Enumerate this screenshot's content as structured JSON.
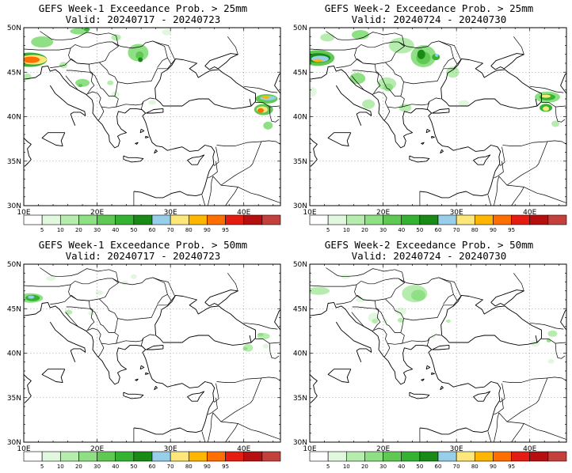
{
  "panels": [
    {
      "title": "GEFS Week-1 Exceedance Prob. > 25mm",
      "valid": "Valid: 20240717 - 20240723",
      "blobs": [
        {
          "cx": -5,
          "cy": 15,
          "rx": 18,
          "ry": 7,
          "level": 7
        },
        {
          "cx": -4,
          "cy": 15,
          "rx": 10,
          "ry": 4,
          "level": 9
        },
        {
          "cx": 2,
          "cy": 18,
          "rx": 6,
          "ry": 2,
          "level": 3
        },
        {
          "cx": 14,
          "cy": 20,
          "rx": 4,
          "ry": 2,
          "level": 3
        },
        {
          "cx": -2,
          "cy": 11,
          "rx": 9,
          "ry": 4,
          "level": 3
        },
        {
          "cx": 34,
          "cy": 18,
          "rx": 3,
          "ry": 3,
          "level": 3
        },
        {
          "cx": 35,
          "cy": 19,
          "rx": 1.5,
          "ry": 1.5,
          "level": 5
        },
        {
          "cx": 5,
          "cy": 21,
          "rx": 3,
          "ry": 3,
          "level": 1
        },
        {
          "cx": 32,
          "cy": 17,
          "rx": 6,
          "ry": 4,
          "level": 1
        },
        {
          "cx": 39,
          "cy": 13,
          "rx": 4,
          "ry": 4,
          "level": 1
        },
        {
          "cx": 20,
          "cy": 12,
          "rx": 4,
          "ry": 4,
          "level": 1
        },
        {
          "cx": 52,
          "cy": 17,
          "rx": 2,
          "ry": 2,
          "level": 1
        },
        {
          "cx": 43,
          "cy": 22,
          "rx": 2,
          "ry": 2,
          "level": 2
        },
        {
          "cx": 52,
          "cy": 27,
          "rx": 3,
          "ry": 3,
          "level": 1
        },
        {
          "cx": 51,
          "cy": -1,
          "rx": 3,
          "ry": 3,
          "level": 1
        },
        {
          "cx": 8,
          "cy": -5,
          "rx": 4,
          "ry": 2,
          "level": 2
        },
        {
          "cx": 14,
          "cy": -7,
          "rx": 2,
          "ry": 2,
          "level": 2
        },
        {
          "cx": 29,
          "cy": 3,
          "rx": 2,
          "ry": 2,
          "level": 1
        },
        {
          "cx": 79,
          "cy": -1,
          "rx": 3,
          "ry": 4,
          "level": 1
        },
        {
          "cx": 81,
          "cy": 2,
          "rx": 2,
          "ry": 2,
          "level": 2
        },
        {
          "cx": 84,
          "cy": 4,
          "rx": 4,
          "ry": 4,
          "level": 1
        },
        {
          "cx": 101,
          "cy": 3,
          "rx": 6,
          "ry": 4,
          "level": 1
        },
        {
          "cx": 86,
          "cy": -2,
          "rx": 3,
          "ry": 3,
          "level": 1
        },
        {
          "cx": 15,
          "cy": 17,
          "rx": 3,
          "ry": 3,
          "level": 1
        },
        {
          "cx": 19,
          "cy": 15,
          "rx": 3,
          "ry": 3,
          "level": 1
        },
        {
          "cx": 33,
          "cy": 7,
          "rx": 2,
          "ry": 2,
          "level": 1
        },
        {
          "cx": 65,
          "cy": 11,
          "rx": 3,
          "ry": 3,
          "level": 2
        },
        {
          "cx": 105,
          "cy": -1,
          "rx": 4,
          "ry": 4,
          "level": 2
        },
        {
          "cx": 114,
          "cy": -8,
          "rx": 4,
          "ry": 4,
          "level": 1
        },
        {
          "cx": 126,
          "cy": -9,
          "rx": 4,
          "ry": 4,
          "level": 1
        },
        {
          "cx": 90,
          "cy": 1,
          "rx": 3,
          "ry": 3,
          "level": 1
        },
        {
          "cx": 137,
          "cy": -13,
          "rx": 3,
          "ry": 3,
          "level": 1
        },
        {
          "cx": 141,
          "cy": -17,
          "rx": 3,
          "ry": 3,
          "level": 1
        },
        {
          "cx": 130,
          "cy": -3,
          "rx": 5,
          "ry": 5,
          "level": 2
        },
        {
          "cx": 41,
          "cy": 23,
          "rx": 5,
          "ry": 4,
          "level": 1
        },
        {
          "cx": 0,
          "cy": 32,
          "rx": 3,
          "ry": 5,
          "level": 1
        },
        {
          "cx": 68,
          "cy": 11,
          "rx": 6,
          "ry": 4,
          "level": 1
        },
        {
          "cx": 80,
          "cy": 11,
          "rx": 3,
          "ry": 3,
          "level": 2
        },
        {
          "cx": 66,
          "cy": 12,
          "rx": 3,
          "ry": 2,
          "level": 4
        },
        {
          "cx": 65,
          "cy": 7,
          "rx": 3,
          "ry": 3,
          "level": 2
        },
        {
          "cx": 60,
          "cy": 6,
          "rx": 3,
          "ry": 3,
          "level": 1
        },
        {
          "cx": 81,
          "cy": 7,
          "rx": 3,
          "ry": 3,
          "level": 1
        },
        {
          "cx": 61,
          "cy": 13,
          "rx": 3,
          "ry": 3,
          "level": 2
        },
        {
          "cx": 73,
          "cy": 6,
          "rx": 5,
          "ry": 4,
          "level": 1
        },
        {
          "cx": 59,
          "cy": -1,
          "rx": 3,
          "ry": 3,
          "level": 1
        },
        {
          "cx": 104,
          "cy": 24,
          "rx": 3,
          "ry": 2,
          "level": 1
        },
        {
          "cx": 79,
          "cy": 16,
          "rx": 3,
          "ry": 3,
          "level": 1
        },
        {
          "cx": 31,
          "cy": 24,
          "rx": 2,
          "ry": 2,
          "level": 1
        },
        {
          "cx": 117,
          "cy": -13,
          "rx": 3,
          "ry": 3,
          "level": 1
        },
        {
          "cx": 21,
          "cy": 30,
          "rx": 2,
          "ry": 2,
          "level": 1
        },
        {
          "cx": 79,
          "cy": -17,
          "rx": 3,
          "ry": 3,
          "level": 1
        }
      ]
    },
    {
      "title": "GEFS Week-2 Exceedance Prob. > 25mm",
      "valid": "Valid: 20240724 - 20240730"
    },
    {
      "title": "GEFS Week-1 Exceedance Prob. > 50mm",
      "valid": "Valid: 20240717 - 20240723"
    },
    {
      "title": "GEFS Week-2 Exceedance Prob. > 50mm",
      "valid": "Valid: 20240724 - 20240730"
    }
  ],
  "map_blobs": [
    [
      {
        "lon": 10.8,
        "lat": 46.4,
        "rx": 22,
        "ry": 9,
        "level": 5
      },
      {
        "lon": 11.3,
        "lat": 46.4,
        "rx": 17,
        "ry": 6,
        "level": 8
      },
      {
        "lon": 11.0,
        "lat": 46.4,
        "rx": 11,
        "ry": 4,
        "level": 10
      },
      {
        "lon": 12.5,
        "lat": 48.4,
        "rx": 14,
        "ry": 7,
        "level": 3
      },
      {
        "lon": 17.6,
        "lat": 49.6,
        "rx": 12,
        "ry": 4,
        "level": 3
      },
      {
        "lon": 18.6,
        "lat": 49.8,
        "rx": 4,
        "ry": 2,
        "level": 5
      },
      {
        "lon": 25.6,
        "lat": 47.2,
        "rx": 13,
        "ry": 11,
        "level": 3
      },
      {
        "lon": 25.8,
        "lat": 46.9,
        "rx": 5,
        "ry": 5,
        "level": 4
      },
      {
        "lon": 25.9,
        "lat": 46.4,
        "rx": 3,
        "ry": 3,
        "level": 6
      },
      {
        "lon": 18.0,
        "lat": 43.8,
        "rx": 9,
        "ry": 5,
        "level": 3
      },
      {
        "lon": 17.7,
        "lat": 43.5,
        "rx": 3,
        "ry": 2,
        "level": 4
      },
      {
        "lon": 21.8,
        "lat": 43.8,
        "rx": 4,
        "ry": 3,
        "level": 2
      },
      {
        "lon": 22.5,
        "lat": 42.5,
        "rx": 5,
        "ry": 4,
        "level": 1
      },
      {
        "lon": 43.1,
        "lat": 42.0,
        "rx": 14,
        "ry": 6,
        "level": 4
      },
      {
        "lon": 43.3,
        "lat": 42.1,
        "rx": 10,
        "ry": 3,
        "level": 7
      },
      {
        "lon": 43.0,
        "lat": 42.2,
        "rx": 5,
        "ry": 2,
        "level": 9
      },
      {
        "lon": 42.7,
        "lat": 40.8,
        "rx": 12,
        "ry": 7,
        "level": 4
      },
      {
        "lon": 42.5,
        "lat": 40.8,
        "rx": 7,
        "ry": 4,
        "level": 8
      },
      {
        "lon": 42.3,
        "lat": 40.7,
        "rx": 4,
        "ry": 3,
        "level": 10
      },
      {
        "lon": 43.3,
        "lat": 39.0,
        "rx": 6,
        "ry": 5,
        "level": 3
      },
      {
        "lon": 27.5,
        "lat": 41.6,
        "rx": 5,
        "ry": 3,
        "level": 1
      },
      {
        "lon": 15.4,
        "lat": 45.8,
        "rx": 5,
        "ry": 4,
        "level": 2
      },
      {
        "lon": 22.6,
        "lat": 48.9,
        "rx": 6,
        "ry": 4,
        "level": 2
      },
      {
        "lon": 29.5,
        "lat": 49.5,
        "rx": 6,
        "ry": 4,
        "level": 1
      },
      {
        "lon": 10.5,
        "lat": 44.5,
        "rx": 5,
        "ry": 4,
        "level": 2
      }
    ],
    [
      {
        "lon": 11.1,
        "lat": 46.6,
        "rx": 21,
        "ry": 10,
        "level": 4
      },
      {
        "lon": 11.1,
        "lat": 46.6,
        "rx": 16,
        "ry": 6,
        "level": 6
      },
      {
        "lon": 11.4,
        "lat": 46.5,
        "rx": 11,
        "ry": 4,
        "level": 7
      },
      {
        "lon": 11.1,
        "lat": 46.3,
        "rx": 6,
        "ry": 2,
        "level": 9
      },
      {
        "lon": 12.4,
        "lat": 48.9,
        "rx": 9,
        "ry": 5,
        "level": 2
      },
      {
        "lon": 16.9,
        "lat": 49.2,
        "rx": 11,
        "ry": 6,
        "level": 3
      },
      {
        "lon": 22.5,
        "lat": 48.0,
        "rx": 16,
        "ry": 10,
        "level": 2
      },
      {
        "lon": 25.5,
        "lat": 46.8,
        "rx": 16,
        "ry": 14,
        "level": 3
      },
      {
        "lon": 25.5,
        "lat": 46.6,
        "rx": 9,
        "ry": 8,
        "level": 4
      },
      {
        "lon": 25.2,
        "lat": 47.0,
        "rx": 5,
        "ry": 6,
        "level": 6
      },
      {
        "lon": 27.2,
        "lat": 46.7,
        "rx": 5,
        "ry": 4,
        "level": 5
      },
      {
        "lon": 27.3,
        "lat": 46.9,
        "rx": 2,
        "ry": 2,
        "level": 7
      },
      {
        "lon": 16.5,
        "lat": 44.3,
        "rx": 10,
        "ry": 7,
        "level": 3
      },
      {
        "lon": 20.5,
        "lat": 43.7,
        "rx": 12,
        "ry": 8,
        "level": 2
      },
      {
        "lon": 20.7,
        "lat": 43.3,
        "rx": 6,
        "ry": 5,
        "level": 3
      },
      {
        "lon": 18.0,
        "lat": 41.4,
        "rx": 8,
        "ry": 6,
        "level": 2
      },
      {
        "lon": 23.0,
        "lat": 41.0,
        "rx": 8,
        "ry": 5,
        "level": 2
      },
      {
        "lon": 29.5,
        "lat": 45.0,
        "rx": 8,
        "ry": 7,
        "level": 2
      },
      {
        "lon": 31.0,
        "lat": 41.5,
        "rx": 7,
        "ry": 4,
        "level": 1
      },
      {
        "lon": 42.4,
        "lat": 42.2,
        "rx": 16,
        "ry": 7,
        "level": 3
      },
      {
        "lon": 42.4,
        "lat": 42.2,
        "rx": 10,
        "ry": 4,
        "level": 5
      },
      {
        "lon": 42.2,
        "lat": 42.3,
        "rx": 6,
        "ry": 2,
        "level": 8
      },
      {
        "lon": 42.2,
        "lat": 41.0,
        "rx": 8,
        "ry": 5,
        "level": 5
      },
      {
        "lon": 42.2,
        "lat": 40.9,
        "rx": 4,
        "ry": 3,
        "level": 8
      },
      {
        "lon": 43.5,
        "lat": 39.2,
        "rx": 5,
        "ry": 4,
        "level": 2
      },
      {
        "lon": 10.3,
        "lat": 42.8,
        "rx": 6,
        "ry": 6,
        "level": 1
      }
    ],
    [
      {
        "lon": 10.9,
        "lat": 46.2,
        "rx": 16,
        "ry": 6,
        "level": 3
      },
      {
        "lon": 11.2,
        "lat": 46.2,
        "rx": 9,
        "ry": 4,
        "level": 5
      },
      {
        "lon": 11.0,
        "lat": 46.3,
        "rx": 4,
        "ry": 2,
        "level": 7
      },
      {
        "lon": 13.7,
        "lat": 48.4,
        "rx": 6,
        "ry": 3,
        "level": 1
      },
      {
        "lon": 16.1,
        "lat": 44.6,
        "rx": 5,
        "ry": 3,
        "level": 2
      },
      {
        "lon": 20.3,
        "lat": 46.8,
        "rx": 5,
        "ry": 3,
        "level": 1
      },
      {
        "lon": 23.8,
        "lat": 47.9,
        "rx": 4,
        "ry": 3,
        "level": 1
      },
      {
        "lon": 25.0,
        "lat": 48.6,
        "rx": 4,
        "ry": 3,
        "level": 1
      },
      {
        "lon": 19.2,
        "lat": 44.5,
        "rx": 4,
        "ry": 3,
        "level": 1
      },
      {
        "lon": 40.6,
        "lat": 40.6,
        "rx": 6,
        "ry": 5,
        "level": 2
      },
      {
        "lon": 40.2,
        "lat": 40.5,
        "rx": 3,
        "ry": 2,
        "level": 3
      },
      {
        "lon": 42.7,
        "lat": 41.9,
        "rx": 8,
        "ry": 4,
        "level": 2
      },
      {
        "lon": 42.3,
        "lat": 42.1,
        "rx": 4,
        "ry": 2,
        "level": 3
      },
      {
        "lon": 43.0,
        "lat": 40.8,
        "rx": 4,
        "ry": 3,
        "level": 1
      }
    ],
    [
      {
        "lon": 11.2,
        "lat": 47.0,
        "rx": 14,
        "ry": 5,
        "level": 2
      },
      {
        "lon": 14.9,
        "lat": 48.6,
        "rx": 6,
        "ry": 3,
        "level": 1
      },
      {
        "lon": 16.9,
        "lat": 46.0,
        "rx": 6,
        "ry": 3,
        "level": 1
      },
      {
        "lon": 18.7,
        "lat": 44.0,
        "rx": 7,
        "ry": 6,
        "level": 1
      },
      {
        "lon": 18.9,
        "lat": 43.6,
        "rx": 4,
        "ry": 3,
        "level": 2
      },
      {
        "lon": 20.3,
        "lat": 43.6,
        "rx": 3,
        "ry": 3,
        "level": 1
      },
      {
        "lon": 24.3,
        "lat": 46.7,
        "rx": 16,
        "ry": 11,
        "level": 2
      },
      {
        "lon": 24.8,
        "lat": 46.5,
        "rx": 9,
        "ry": 7,
        "level": 3
      },
      {
        "lon": 22.4,
        "lat": 44.7,
        "rx": 7,
        "ry": 5,
        "level": 1
      },
      {
        "lon": 22.4,
        "lat": 43.7,
        "rx": 4,
        "ry": 3,
        "level": 2
      },
      {
        "lon": 28.9,
        "lat": 43.6,
        "rx": 3,
        "ry": 2,
        "level": 2
      },
      {
        "lon": 26.7,
        "lat": 41.8,
        "rx": 4,
        "ry": 2,
        "level": 1
      },
      {
        "lon": 40.7,
        "lat": 41.1,
        "rx": 6,
        "ry": 4,
        "level": 1
      },
      {
        "lon": 43.1,
        "lat": 42.2,
        "rx": 6,
        "ry": 4,
        "level": 2
      },
      {
        "lon": 42.6,
        "lat": 41.4,
        "rx": 3,
        "ry": 2,
        "level": 3
      },
      {
        "lon": 42.9,
        "lat": 39.1,
        "rx": 4,
        "ry": 3,
        "level": 1
      }
    ]
  ],
  "map": {
    "lon_range": [
      10,
      45
    ],
    "lat_range": [
      30,
      50
    ],
    "lon_ticks": [
      "10E",
      "20E",
      "30E",
      "40E"
    ],
    "lat_ticks": [
      "50N",
      "45N",
      "40N",
      "35N",
      "30N"
    ]
  },
  "colorbar": {
    "colors": [
      "#ffffff",
      "#e1f8df",
      "#b6ecae",
      "#8fdf85",
      "#60c954",
      "#34b332",
      "#1a8a17",
      "#97cfeb",
      "#fde67a",
      "#ffb600",
      "#fe6e00",
      "#e41c12",
      "#b50f0f",
      "#c4403c"
    ],
    "labels": [
      "5",
      "10",
      "20",
      "30",
      "40",
      "50",
      "60",
      "70",
      "80",
      "90",
      "95"
    ]
  }
}
